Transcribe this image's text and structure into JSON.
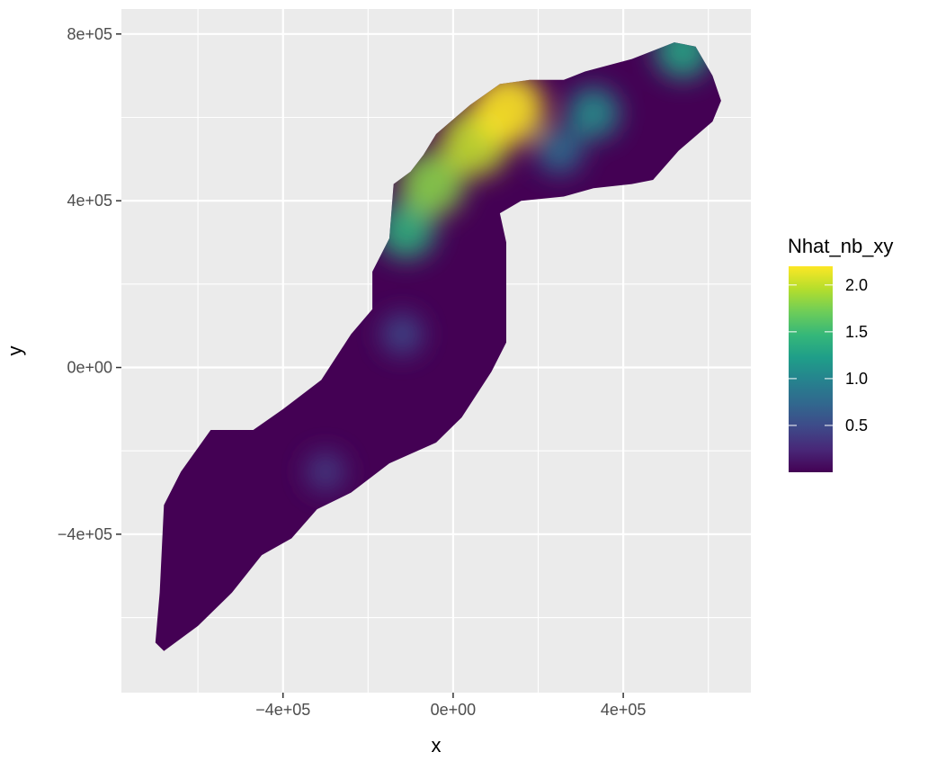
{
  "chart_data": {
    "type": "heatmap",
    "title": "",
    "xlabel": "x",
    "ylabel": "y",
    "xlim": [
      -780000,
      700000
    ],
    "ylim": [
      -780000,
      860000
    ],
    "x_ticks": [
      {
        "value": -400000,
        "label": "−4e+05"
      },
      {
        "value": 0,
        "label": "0e+00"
      },
      {
        "value": 400000,
        "label": "4e+05"
      }
    ],
    "y_ticks": [
      {
        "value": 800000,
        "label": "8e+05"
      },
      {
        "value": 400000,
        "label": "4e+05"
      },
      {
        "value": 0,
        "label": "0e+00"
      },
      {
        "value": -400000,
        "label": "−4e+05"
      }
    ],
    "grid": true,
    "legend": {
      "title": "Nhat_nb_xy",
      "placement": "right",
      "min": 0,
      "max": 2.2,
      "breaks": [
        {
          "value": 2.0,
          "label": "2.0"
        },
        {
          "value": 1.5,
          "label": "1.5"
        },
        {
          "value": 1.0,
          "label": "1.0"
        },
        {
          "value": 0.5,
          "label": "0.5"
        }
      ],
      "palette": [
        "#440154",
        "#482878",
        "#3E4A89",
        "#31688E",
        "#26828E",
        "#1F9E89",
        "#35B779",
        "#6DCD59",
        "#B4DE2C",
        "#FDE725"
      ]
    },
    "region": {
      "description_points": "approximate outline of the mapped survey area in data units",
      "outline": [
        [
          -700000,
          -660000
        ],
        [
          -690000,
          -540000
        ],
        [
          -680000,
          -330000
        ],
        [
          -640000,
          -250000
        ],
        [
          -570000,
          -150000
        ],
        [
          -470000,
          -150000
        ],
        [
          -400000,
          -100000
        ],
        [
          -310000,
          -30000
        ],
        [
          -240000,
          80000
        ],
        [
          -190000,
          140000
        ],
        [
          -190000,
          230000
        ],
        [
          -150000,
          310000
        ],
        [
          -140000,
          440000
        ],
        [
          -100000,
          470000
        ],
        [
          -70000,
          510000
        ],
        [
          -40000,
          560000
        ],
        [
          40000,
          630000
        ],
        [
          110000,
          680000
        ],
        [
          180000,
          690000
        ],
        [
          260000,
          690000
        ],
        [
          310000,
          710000
        ],
        [
          420000,
          740000
        ],
        [
          520000,
          780000
        ],
        [
          570000,
          770000
        ],
        [
          610000,
          700000
        ],
        [
          630000,
          640000
        ],
        [
          610000,
          590000
        ],
        [
          530000,
          520000
        ],
        [
          470000,
          450000
        ],
        [
          420000,
          440000
        ],
        [
          330000,
          430000
        ],
        [
          260000,
          410000
        ],
        [
          160000,
          400000
        ],
        [
          110000,
          370000
        ],
        [
          125000,
          300000
        ],
        [
          125000,
          60000
        ],
        [
          90000,
          -10000
        ],
        [
          20000,
          -120000
        ],
        [
          -40000,
          -180000
        ],
        [
          -150000,
          -230000
        ],
        [
          -240000,
          -300000
        ],
        [
          -320000,
          -340000
        ],
        [
          -380000,
          -410000
        ],
        [
          -450000,
          -450000
        ],
        [
          -520000,
          -540000
        ],
        [
          -600000,
          -620000
        ],
        [
          -680000,
          -680000
        ]
      ],
      "hotspots": [
        {
          "x": 130000,
          "y": 620000,
          "value": 2.2
        },
        {
          "x": 50000,
          "y": 540000,
          "value": 2.0
        },
        {
          "x": -50000,
          "y": 440000,
          "value": 1.8
        },
        {
          "x": -110000,
          "y": 330000,
          "value": 1.4
        },
        {
          "x": 330000,
          "y": 610000,
          "value": 1.1
        },
        {
          "x": 540000,
          "y": 760000,
          "value": 1.3
        },
        {
          "x": 250000,
          "y": 520000,
          "value": 0.8
        },
        {
          "x": -120000,
          "y": 80000,
          "value": 0.5
        },
        {
          "x": -300000,
          "y": -250000,
          "value": 0.4
        }
      ]
    }
  }
}
